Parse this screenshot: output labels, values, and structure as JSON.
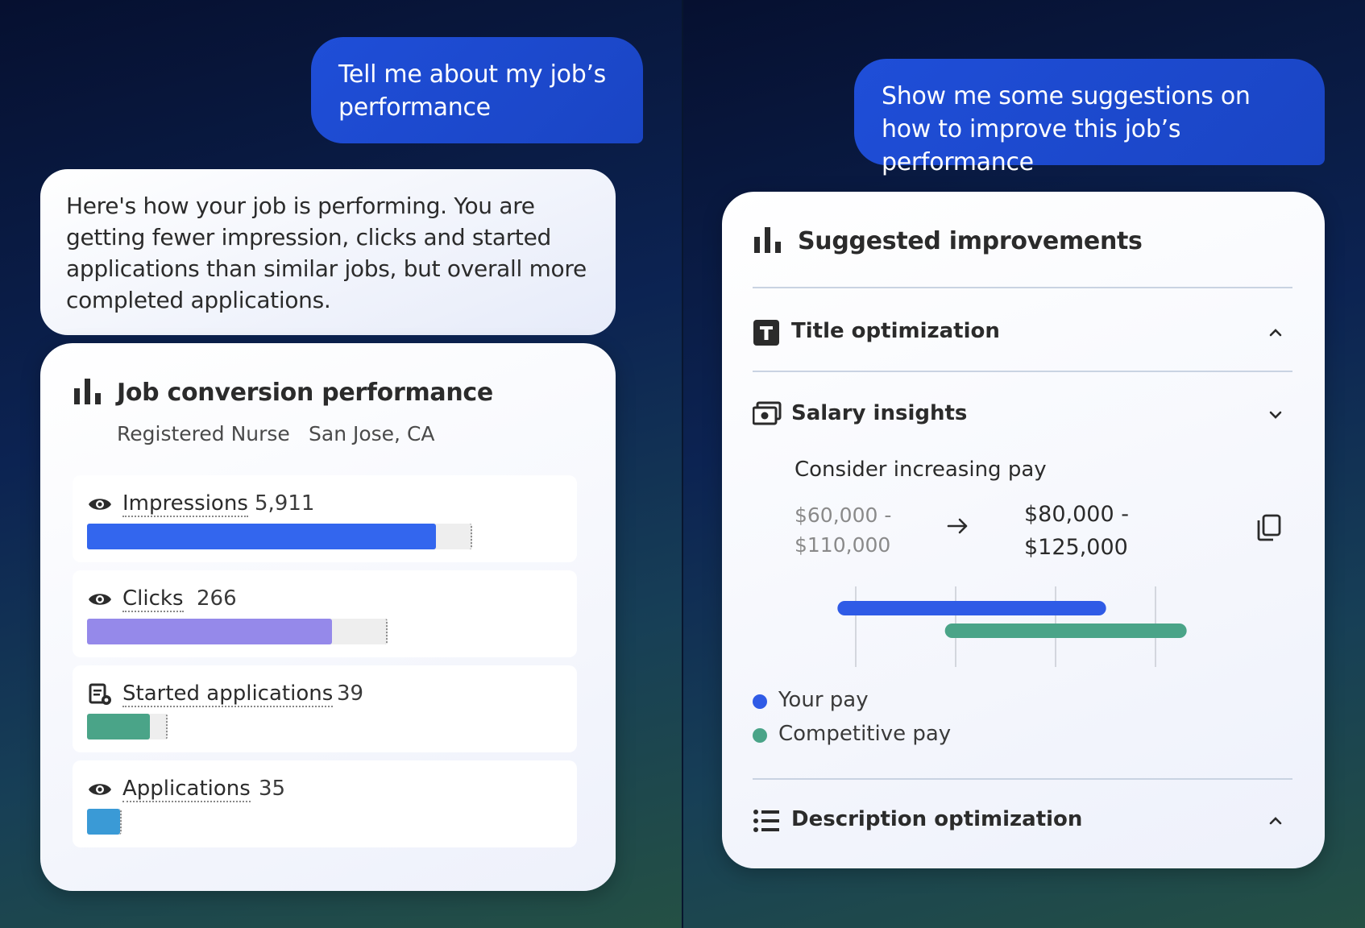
{
  "left": {
    "user_message": "Tell me about my job’s performance",
    "bot_message": "Here's how your job is performing. You are getting fewer impression, clicks and started applications than similar jobs, but overall more completed applications.",
    "card": {
      "title": "Job conversion performance",
      "job_title": "Registered Nurse",
      "location": "San Jose, CA",
      "metrics": [
        {
          "label": "Impressions",
          "value": "5,911",
          "fill_pct": 0.91,
          "track_units": 1.0,
          "color": "#3366ee",
          "icon": "eye-icon"
        },
        {
          "label": "Clicks",
          "value": "266",
          "fill_pct": 0.82,
          "track_units": 0.78,
          "color": "#9589ea",
          "icon": "eye-icon"
        },
        {
          "label": "Started applications",
          "value": "39",
          "fill_pct": 0.8,
          "track_units": 0.21,
          "color": "#4aa488",
          "icon": "application-form-icon"
        },
        {
          "label": "Applications",
          "value": "35",
          "fill_pct": 1.0,
          "track_units": 0.09,
          "color": "#3a9ad6",
          "icon": "eye-icon"
        }
      ]
    }
  },
  "right": {
    "user_message": "Show me some suggestions on how to improve this job’s performance",
    "card": {
      "title": "Suggested improvements",
      "sections": {
        "title_opt": {
          "label": "Title optimization",
          "icon": "title-t-icon",
          "state": "collapsed"
        },
        "salary": {
          "label": "Salary insights",
          "icon": "money-icon",
          "state": "expanded"
        },
        "description": {
          "label": "Description optimization",
          "icon": "list-icon",
          "state": "collapsed"
        }
      },
      "salary": {
        "heading": "Consider increasing pay",
        "current_line1": "$60,000 -",
        "current_line2": "$110,000",
        "suggested_line1": "$80,000 -",
        "suggested_line2": "$125,000",
        "your_pay_range": [
          60000,
          110000
        ],
        "competitive_pay_range": [
          80000,
          125000
        ],
        "axis_range": [
          55000,
          130000
        ],
        "your_pay_color": "#2f5be6",
        "competitive_pay_color": "#4aa488",
        "legend": {
          "your_pay": "Your pay",
          "competitive_pay": "Competitive pay"
        }
      }
    }
  }
}
